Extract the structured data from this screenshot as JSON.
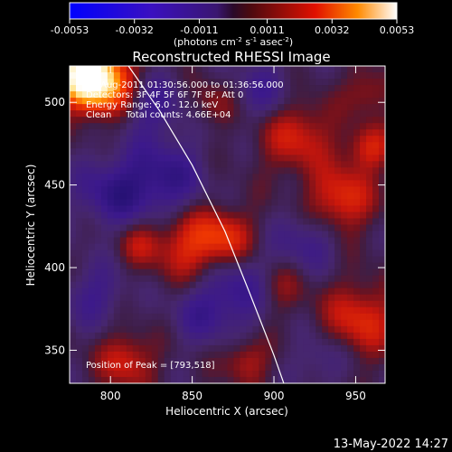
{
  "chart_data": {
    "type": "heatmap",
    "title": "Reconstructed RHESSI Image",
    "colorbar": {
      "ticks": [
        "-0.0053",
        "-0.0032",
        "-0.0011",
        "0.0011",
        "0.0032",
        "0.0053"
      ],
      "range": [
        -0.0053,
        0.0053
      ],
      "label_parts": {
        "base": "(photons cm",
        "exp1": "-2",
        "mid1": " s",
        "exp2": "-1",
        "mid2": " asec",
        "exp3": "-2",
        "end": ")"
      }
    },
    "xlabel": "Heliocentric X (arcsec)",
    "ylabel": "Heliocentric Y (arcsec)",
    "xlim": [
      775,
      968
    ],
    "ylim": [
      330,
      522
    ],
    "x_ticks": [
      800,
      850,
      900,
      950
    ],
    "y_ticks": [
      350,
      400,
      450,
      500
    ],
    "annotations": [
      "30-Aug-2011 01:30:56.000 to 01:36:56.000",
      "Detectors: 3F 4F 5F 6F 7F 8F, Att 0",
      "Energy Range: 6.0 - 12.0 keV",
      "Clean     Total counts: 4.66E+04"
    ],
    "peak_label": "Position of Peak = [793,518]",
    "peak": [
      793,
      518
    ],
    "limb_curve": [
      [
        811,
        522
      ],
      [
        830,
        495
      ],
      [
        850,
        462
      ],
      [
        870,
        422
      ],
      [
        885,
        385
      ],
      [
        900,
        347
      ],
      [
        906,
        330
      ]
    ]
  },
  "footer": {
    "date": "13-May-2022 14:27"
  }
}
